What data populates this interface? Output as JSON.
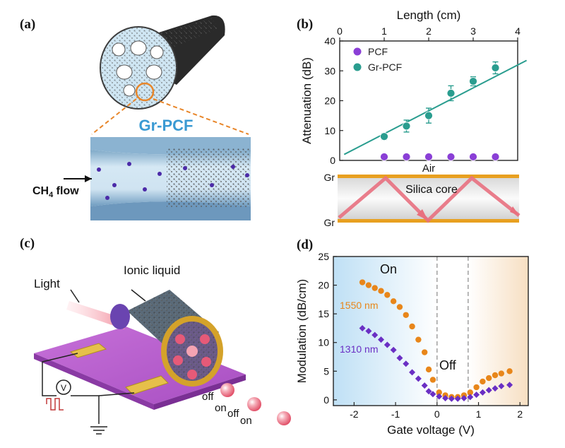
{
  "panels": {
    "a": {
      "label": "(a)",
      "fiber_label": "Gr-PCF",
      "flow_label_main": "CH",
      "flow_label_sub": "4",
      "flow_label_tail": " flow"
    },
    "b": {
      "label": "(b)",
      "core_diagram": {
        "top_label": "Gr",
        "bottom_label": "Gr",
        "air_label": "Air",
        "core_label": "Silica core"
      }
    },
    "c": {
      "label": "(c)",
      "light_label": "Light",
      "liquid_label": "Ionic liquid",
      "voltage_symbol": "V",
      "sequence": [
        "off",
        "on",
        "off",
        "on"
      ]
    },
    "d": {
      "label": "(d)",
      "on_label": "On",
      "off_label": "Off"
    }
  },
  "colors": {
    "pcf": "#8a3fd6",
    "grpcf": "#2a9d8f",
    "fit_line": "#2a9d8f",
    "orange": "#e8861a",
    "purple": "#6a2fc4",
    "gold": "#e8a020",
    "pink": "#e85a70"
  },
  "chart_data": [
    {
      "type": "scatter",
      "xlabel": "Length (cm)",
      "ylabel": "Attenuation (dB)",
      "xlim": [
        0,
        4
      ],
      "ylim": [
        0,
        40
      ],
      "xticks": [
        0,
        1,
        2,
        3,
        4
      ],
      "yticks": [
        0,
        10,
        20,
        30,
        40
      ],
      "legend_position": "top-left",
      "series": [
        {
          "name": "PCF",
          "x": [
            1.0,
            1.5,
            2.0,
            2.5,
            3.0,
            3.5
          ],
          "y": [
            1.2,
            1.2,
            1.2,
            1.2,
            1.2,
            1.2
          ],
          "err": [
            0,
            0,
            0,
            0,
            0,
            0
          ]
        },
        {
          "name": "Gr-PCF",
          "x": [
            1.0,
            1.5,
            2.0,
            2.5,
            3.0,
            3.5
          ],
          "y": [
            8,
            11.5,
            15,
            22.5,
            26.5,
            31
          ],
          "err": [
            1,
            2,
            2.5,
            2.5,
            1.5,
            2
          ]
        }
      ],
      "fit_line": {
        "x": [
          0.1,
          4.2
        ],
        "y": [
          2.0,
          33.5
        ]
      }
    },
    {
      "type": "scatter",
      "xlabel": "Gate voltage (V)",
      "ylabel": "Modulation (dB/cm)",
      "xlim": [
        -2.5,
        2.2
      ],
      "ylim": [
        -1,
        25
      ],
      "xticks": [
        -2,
        -1,
        0,
        1,
        2
      ],
      "yticks": [
        0,
        5,
        10,
        15,
        20,
        25
      ],
      "vlines": [
        0,
        0.75
      ],
      "series": [
        {
          "name": "1550 nm",
          "x": [
            -1.8,
            -1.65,
            -1.5,
            -1.35,
            -1.2,
            -1.05,
            -0.9,
            -0.75,
            -0.6,
            -0.45,
            -0.3,
            -0.2,
            -0.1,
            0.05,
            0.2,
            0.35,
            0.5,
            0.65,
            0.8,
            0.95,
            1.1,
            1.25,
            1.4,
            1.55,
            1.75
          ],
          "y": [
            20.5,
            20,
            19.5,
            19,
            18.3,
            17.2,
            16.2,
            14.8,
            12.8,
            10.5,
            8.3,
            5.3,
            3.5,
            1.3,
            0.8,
            0.5,
            0.5,
            0.8,
            1.3,
            2.2,
            3.2,
            3.8,
            4.3,
            4.6,
            5.0
          ]
        },
        {
          "name": "1310 nm",
          "x": [
            -1.8,
            -1.65,
            -1.5,
            -1.35,
            -1.2,
            -1.05,
            -0.9,
            -0.75,
            -0.6,
            -0.45,
            -0.3,
            -0.2,
            -0.1,
            0.05,
            0.2,
            0.35,
            0.5,
            0.65,
            0.8,
            0.95,
            1.1,
            1.25,
            1.4,
            1.55,
            1.75
          ],
          "y": [
            12.5,
            12,
            11.3,
            10.5,
            9.6,
            8.7,
            7.3,
            6.3,
            4.8,
            3.7,
            2.5,
            1.5,
            1.0,
            0.6,
            0.3,
            0.2,
            0.2,
            0.3,
            0.5,
            0.9,
            1.3,
            1.7,
            2.0,
            2.4,
            2.6
          ]
        }
      ]
    }
  ]
}
